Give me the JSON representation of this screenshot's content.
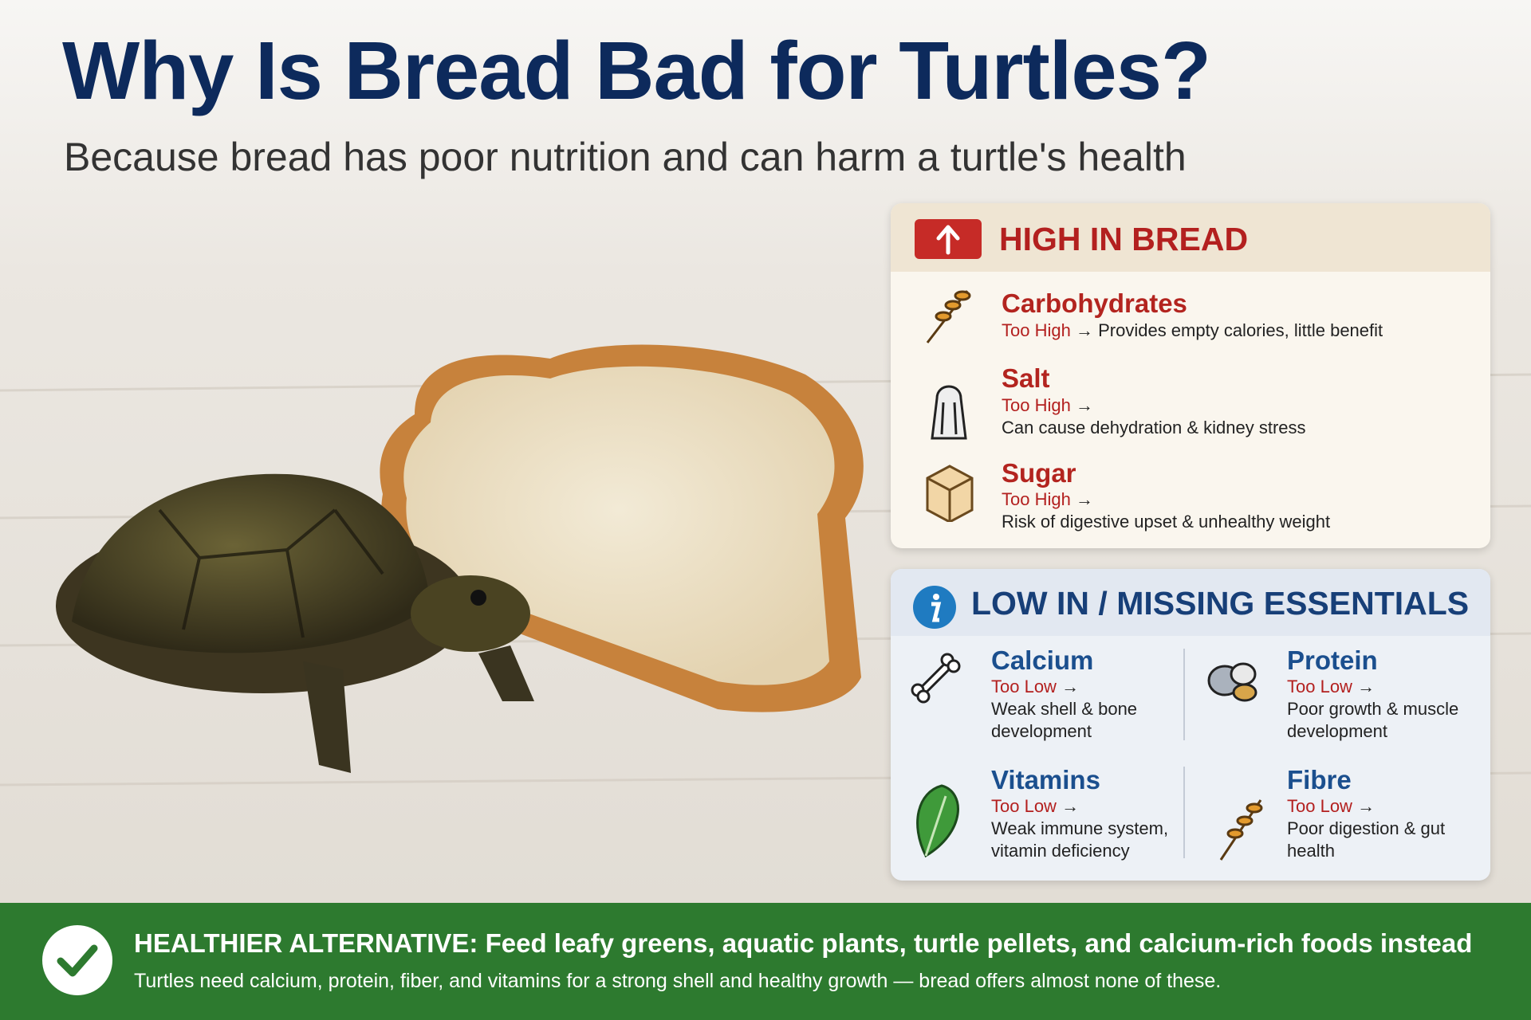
{
  "header": {
    "title": "Why Is Bread Bad for Turtles?",
    "subtitle": "Because bread has poor nutrition and can harm a turtle's health"
  },
  "high_panel": {
    "title": "HIGH IN BREAD",
    "items": [
      {
        "name": "Carbohydrates",
        "level": "Too High",
        "arrow": "→",
        "detail": "Provides empty calories, little benefit"
      },
      {
        "name": "Salt",
        "level": "Too High",
        "arrow": "→",
        "detail": "Can cause dehydration & kidney stress"
      },
      {
        "name": "Sugar",
        "level": "Too High",
        "arrow": "→",
        "detail": "Risk of digestive upset & unhealthy weight"
      }
    ]
  },
  "low_panel": {
    "title": "LOW IN / MISSING ESSENTIALS",
    "items": [
      {
        "name": "Calcium",
        "level": "Too Low",
        "arrow": "→",
        "detail": "Weak shell & bone development"
      },
      {
        "name": "Protein",
        "level": "Too Low",
        "arrow": "→",
        "detail": "Poor growth & muscle development"
      },
      {
        "name": "Vitamins",
        "level": "Too Low",
        "arrow": "→",
        "detail": "Weak immune system, vitamin deficiency"
      },
      {
        "name": "Fibre",
        "level": "Too Low",
        "arrow": "→",
        "detail": "Poor digestion & gut health"
      }
    ]
  },
  "footer": {
    "label": "HEALTHIER ALTERNATIVE:",
    "headline": "Feed leafy greens, aquatic plants, turtle pellets, and calcium-rich foods instead",
    "note": "Turtles need calcium, protein, fiber, and vitamins for a strong shell and healthy growth — bread offers almost none of these."
  }
}
